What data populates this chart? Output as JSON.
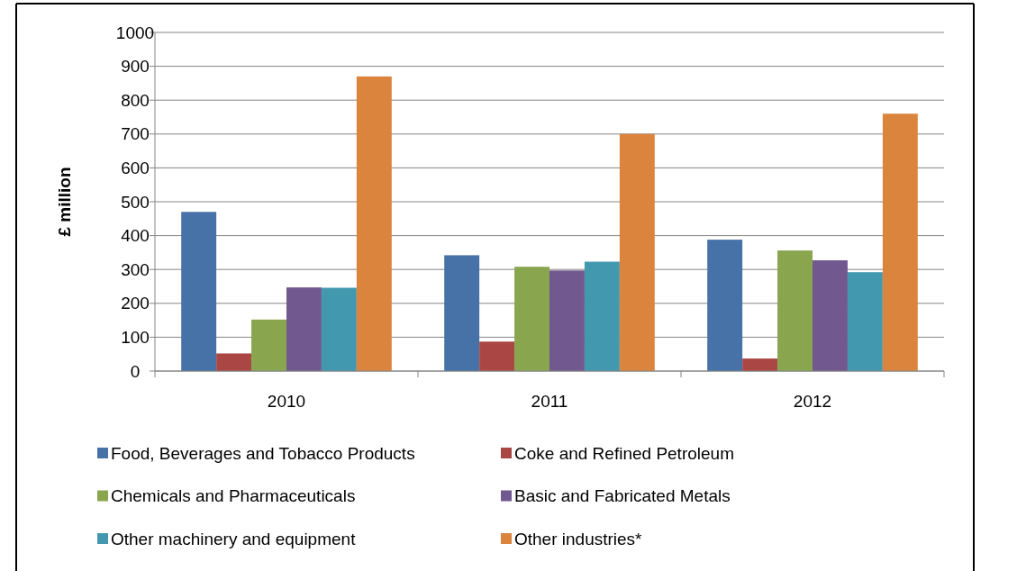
{
  "chart_data": {
    "type": "bar",
    "ylabel": "£ million",
    "categories": [
      "2010",
      "2011",
      "2012"
    ],
    "series": [
      {
        "name": "Food, Beverages and Tobacco Products",
        "color": "#4672a8",
        "values": [
          470,
          342,
          388
        ]
      },
      {
        "name": "Coke and Refined Petroleum",
        "color": "#aa4744",
        "values": [
          52,
          87,
          37
        ]
      },
      {
        "name": "Chemicals and Pharmaceuticals",
        "color": "#89a54e",
        "values": [
          152,
          308,
          356
        ]
      },
      {
        "name": "Basic and Fabricated Metals",
        "color": "#71588f",
        "values": [
          247,
          297,
          327
        ]
      },
      {
        "name": "Other machinery and equipment",
        "color": "#4298af",
        "values": [
          246,
          323,
          292
        ]
      },
      {
        "name": "Other industries*",
        "color": "#db843d",
        "values": [
          870,
          700,
          760
        ]
      }
    ],
    "ylim": [
      0,
      1000
    ],
    "yticks": [
      0,
      100,
      200,
      300,
      400,
      500,
      600,
      700,
      800,
      900,
      1000
    ],
    "grid": "y",
    "legend": "bottom"
  }
}
